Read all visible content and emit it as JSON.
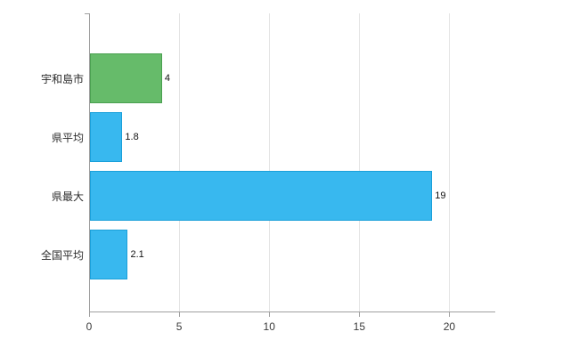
{
  "chart_data": {
    "type": "bar",
    "orientation": "horizontal",
    "title": "",
    "xlabel": "",
    "ylabel": "",
    "categories": [
      "宇和島市",
      "県平均",
      "県最大",
      "全国平均"
    ],
    "values": [
      4,
      1.8,
      19,
      2.1
    ],
    "value_labels": [
      "4",
      "1.8",
      "19",
      "2.1"
    ],
    "bar_colors": [
      "#66bb6a",
      "#38b8ef",
      "#38b8ef",
      "#38b8ef"
    ],
    "bar_border_colors": [
      "#4aa050",
      "#1aa0da",
      "#1aa0da",
      "#1aa0da"
    ],
    "xlim": [
      0,
      22.5
    ],
    "x_ticks": [
      0,
      5,
      10,
      15,
      20
    ],
    "x_tick_labels": [
      "0",
      "5",
      "10",
      "15",
      "20"
    ],
    "grid": true,
    "legend": "none",
    "colors": {
      "grid_line": "#e4e4e4",
      "axis_line": "#9f9f9f",
      "background": "#ffffff"
    }
  }
}
